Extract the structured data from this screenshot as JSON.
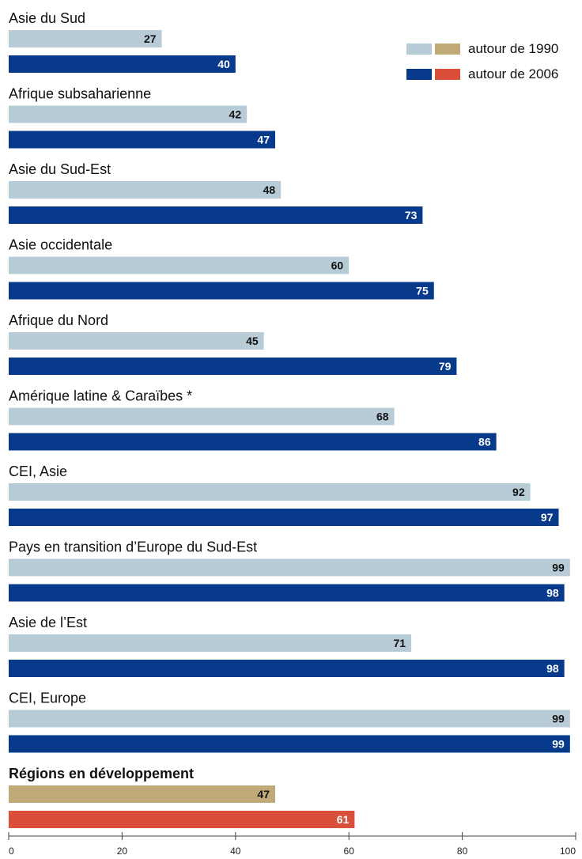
{
  "chart_data": {
    "type": "bar",
    "orientation": "horizontal",
    "xlim": [
      0,
      100
    ],
    "xticks": [
      "0",
      "20",
      "40",
      "60",
      "80",
      "100"
    ],
    "legend": {
      "position": "top-right",
      "items": [
        "autour de 1990",
        "autour de 2006"
      ]
    },
    "colors": {
      "1990": "#b8ccd8",
      "2006": "#073a8a",
      "dev_1990": "#c0aa78",
      "dev_2006": "#d94f3a",
      "label_dark": "#111111",
      "label_light": "#ffffff"
    },
    "categories": [
      {
        "name": "Asie du Sud",
        "v1990": 27,
        "v2006": 40,
        "highlight": false
      },
      {
        "name": "Afrique subsaharienne",
        "v1990": 42,
        "v2006": 47,
        "highlight": false
      },
      {
        "name": "Asie du Sud-Est",
        "v1990": 48,
        "v2006": 73,
        "highlight": false
      },
      {
        "name": "Asie occidentale",
        "v1990": 60,
        "v2006": 75,
        "highlight": false
      },
      {
        "name": "Afrique du Nord",
        "v1990": 45,
        "v2006": 79,
        "highlight": false
      },
      {
        "name": "Amérique latine & Caraïbes *",
        "v1990": 68,
        "v2006": 86,
        "highlight": false
      },
      {
        "name": "CEI, Asie",
        "v1990": 92,
        "v2006": 97,
        "highlight": false
      },
      {
        "name": "Pays en transition d’Europe du Sud-Est",
        "v1990": 99,
        "v2006": 98,
        "highlight": false
      },
      {
        "name": "Asie de l’Est",
        "v1990": 71,
        "v2006": 98,
        "highlight": false
      },
      {
        "name": "CEI, Europe",
        "v1990": 99,
        "v2006": 99,
        "highlight": false
      },
      {
        "name": "Régions en développement",
        "v1990": 47,
        "v2006": 61,
        "highlight": true
      }
    ]
  }
}
